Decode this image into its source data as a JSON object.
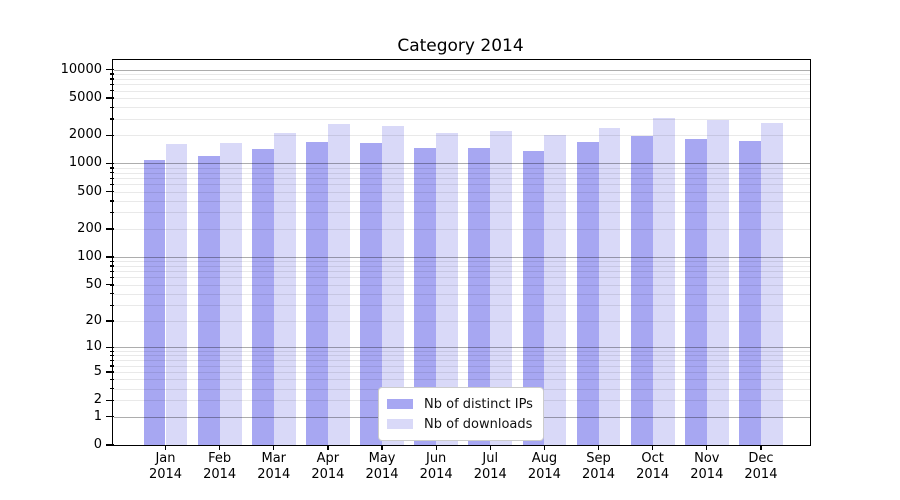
{
  "page": {
    "background": "#ffffff"
  },
  "chart_data": {
    "type": "bar",
    "title": "Category 2014",
    "x": {
      "months": [
        "Jan",
        "Feb",
        "Mar",
        "Apr",
        "May",
        "Jun",
        "Jul",
        "Aug",
        "Sep",
        "Oct",
        "Nov",
        "Dec"
      ],
      "year": "2014"
    },
    "series": [
      {
        "name": "Nb of distinct IPs",
        "color": "#a7a7f2",
        "values": [
          1100,
          1200,
          1430,
          1710,
          1670,
          1470,
          1450,
          1370,
          1710,
          1960,
          1820,
          1740
        ]
      },
      {
        "name": "Nb of downloads",
        "color": "#d9d9f8",
        "values": [
          1630,
          1650,
          2130,
          2630,
          2520,
          2100,
          2200,
          2030,
          2380,
          3050,
          2900,
          2690
        ]
      }
    ],
    "y_axis": {
      "scale": "log1p",
      "min": 0,
      "max": 12690,
      "tick_labels": [
        10000,
        5000,
        2000,
        1000,
        500,
        200,
        100,
        50,
        20,
        10,
        5,
        2,
        1,
        0
      ],
      "major_gridlines": [
        1,
        10,
        100,
        1000,
        10000
      ],
      "minor_decades": [
        1,
        10,
        100,
        1000
      ],
      "minor_multiples": [
        2,
        3,
        4,
        5,
        6,
        7,
        8,
        9
      ]
    },
    "grid": true,
    "legend_position": "lower center"
  }
}
